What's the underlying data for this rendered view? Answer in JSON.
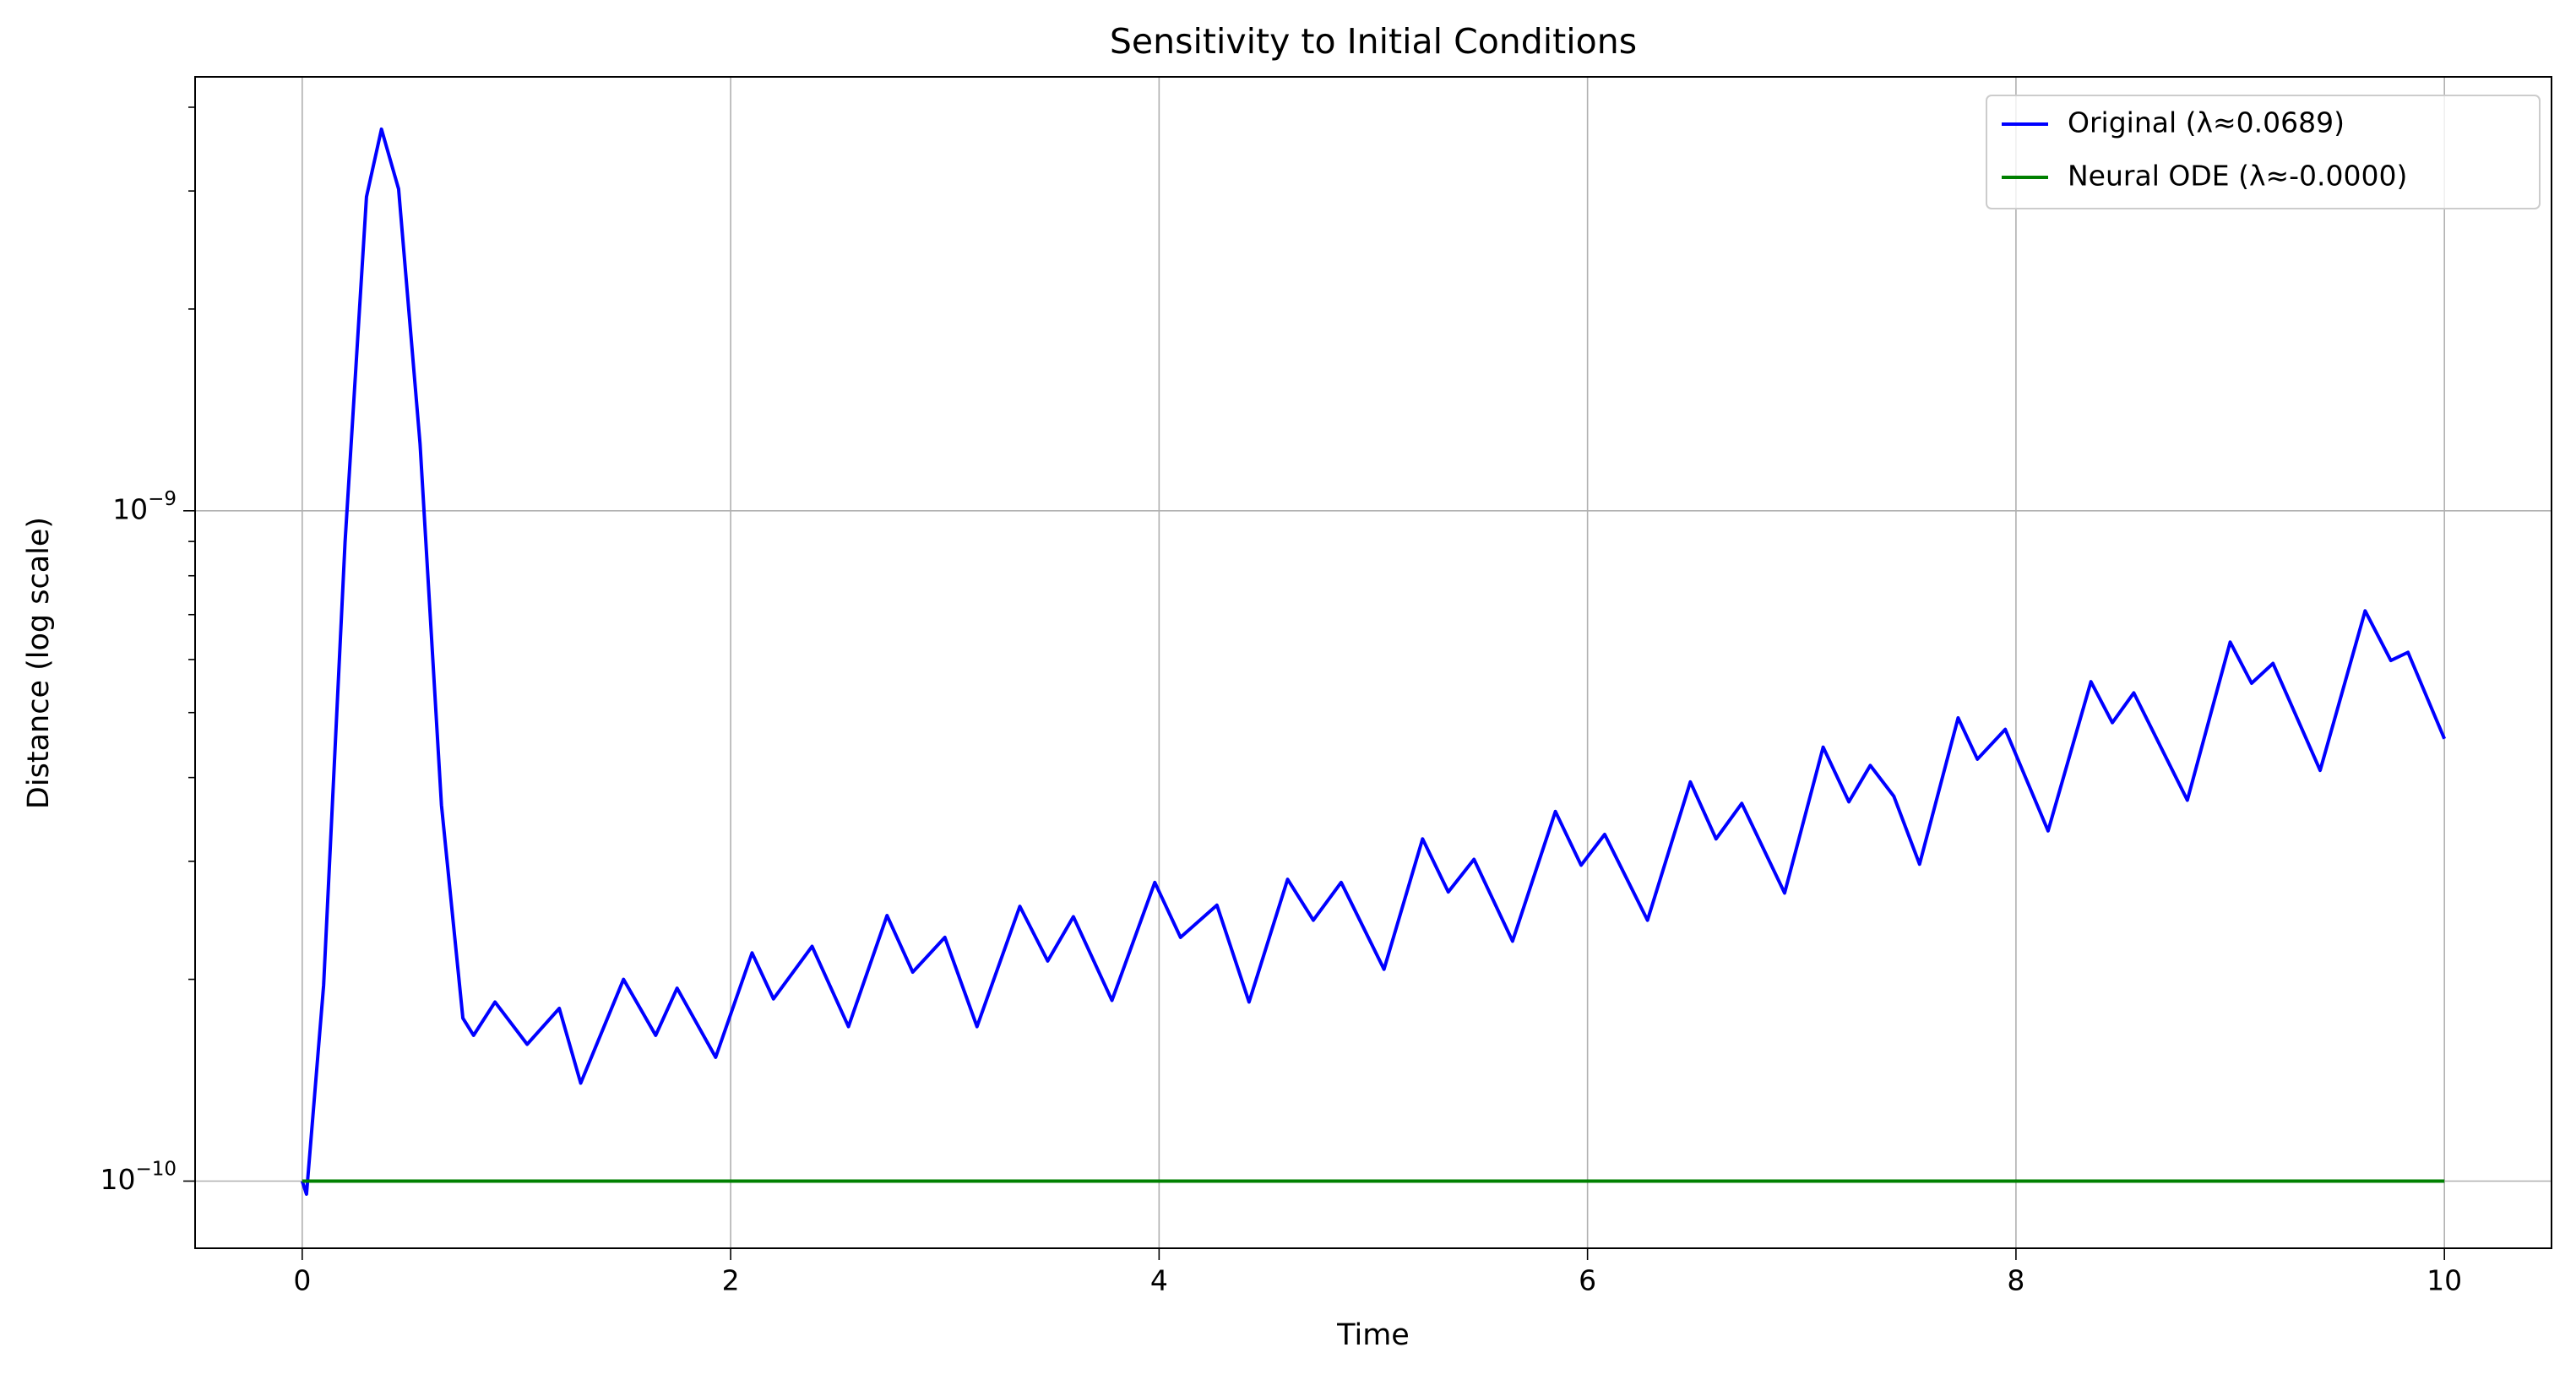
{
  "chart_data": {
    "type": "line",
    "title": "Sensitivity to Initial Conditions",
    "xlabel": "Time",
    "ylabel": "Distance (log scale)",
    "xlim": [
      -0.5,
      10.5
    ],
    "xticks": [
      0,
      2,
      4,
      6,
      8,
      10
    ],
    "ylim": [
      7.94e-11,
      4.44e-09
    ],
    "yscale": "log",
    "yticks": [
      {
        "value": 1e-10,
        "label": "10^−10"
      },
      {
        "value": 1e-09,
        "label": "10^−9"
      }
    ],
    "yminorticks": [
      2e-10,
      3e-10,
      4e-10,
      5e-10,
      6e-10,
      7e-10,
      8e-10,
      9e-10,
      2e-09,
      3e-09,
      4e-09
    ],
    "grid": true,
    "legend": "upper right",
    "series": [
      {
        "name": "Original (λ≈0.0689)",
        "color": "#0000ff",
        "x": [
          0,
          0.02,
          0.1,
          0.2,
          0.3,
          0.37,
          0.45,
          0.55,
          0.65,
          0.75,
          0.8,
          0.9,
          1.05,
          1.2,
          1.3,
          1.5,
          1.65,
          1.75,
          1.93,
          2.1,
          2.2,
          2.38,
          2.55,
          2.73,
          2.85,
          3.0,
          3.15,
          3.35,
          3.48,
          3.6,
          3.78,
          3.98,
          4.1,
          4.27,
          4.42,
          4.6,
          4.72,
          4.85,
          5.05,
          5.23,
          5.35,
          5.47,
          5.65,
          5.85,
          5.97,
          6.08,
          6.28,
          6.48,
          6.6,
          6.72,
          6.92,
          7.1,
          7.22,
          7.32,
          7.43,
          7.55,
          7.73,
          7.82,
          7.95,
          8.15,
          8.35,
          8.45,
          8.55,
          8.8,
          9.0,
          9.1,
          9.2,
          9.42,
          9.63,
          9.75,
          9.83,
          10.0
        ],
        "values": [
          1e-10,
          9.56e-11,
          1.96e-10,
          8.98e-10,
          2.94e-09,
          3.71e-09,
          3.02e-09,
          1.26e-09,
          3.64e-10,
          1.75e-10,
          1.65e-10,
          1.85e-10,
          1.6e-10,
          1.81e-10,
          1.4e-10,
          2e-10,
          1.65e-10,
          1.94e-10,
          1.53e-10,
          2.19e-10,
          1.87e-10,
          2.24e-10,
          1.7e-10,
          2.49e-10,
          2.05e-10,
          2.31e-10,
          1.7e-10,
          2.57e-10,
          2.13e-10,
          2.48e-10,
          1.86e-10,
          2.79e-10,
          2.31e-10,
          2.58e-10,
          1.85e-10,
          2.82e-10,
          2.45e-10,
          2.79e-10,
          2.07e-10,
          3.24e-10,
          2.7e-10,
          3.02e-10,
          2.28e-10,
          3.56e-10,
          2.96e-10,
          3.29e-10,
          2.45e-10,
          3.94e-10,
          3.24e-10,
          3.66e-10,
          2.69e-10,
          4.44e-10,
          3.68e-10,
          4.17e-10,
          3.75e-10,
          2.97e-10,
          4.91e-10,
          4.26e-10,
          4.72e-10,
          3.33e-10,
          5.56e-10,
          4.83e-10,
          5.35e-10,
          3.7e-10,
          6.37e-10,
          5.53e-10,
          5.92e-10,
          4.1e-10,
          7.09e-10,
          5.98e-10,
          6.15e-10,
          4.57e-10
        ]
      },
      {
        "name": "Neural ODE (λ≈-0.0000)",
        "color": "#008000",
        "x": [
          0,
          10
        ],
        "values": [
          1e-10,
          1e-10
        ]
      }
    ]
  }
}
